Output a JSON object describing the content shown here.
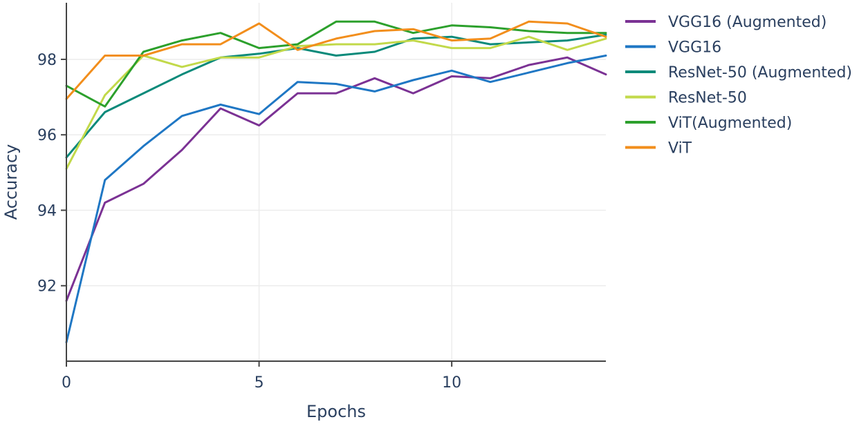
{
  "chart_data": {
    "type": "line",
    "title": "",
    "xlabel": "Epochs",
    "ylabel": "Accuracy",
    "xlim": [
      0,
      14
    ],
    "ylim": [
      90,
      99.5
    ],
    "x_ticks": [
      0,
      5,
      10
    ],
    "y_ticks": [
      92,
      94,
      96,
      98
    ],
    "x_tick_labels": [
      "0",
      "5",
      "10"
    ],
    "y_tick_labels": [
      "92",
      "94",
      "96",
      "98"
    ],
    "grid": true,
    "legend_position": "right",
    "x": [
      0,
      1,
      2,
      3,
      4,
      5,
      6,
      7,
      8,
      9,
      10,
      11,
      12,
      13,
      14
    ],
    "series": [
      {
        "name": "VGG16 (Augmented)",
        "color": "#7b3294",
        "values": [
          91.6,
          94.2,
          94.7,
          95.6,
          96.7,
          96.25,
          97.1,
          97.1,
          97.5,
          97.1,
          97.55,
          97.5,
          97.85,
          98.05,
          97.6
        ]
      },
      {
        "name": "VGG16",
        "color": "#1f77c4",
        "values": [
          90.5,
          94.8,
          95.7,
          96.5,
          96.8,
          96.55,
          97.4,
          97.35,
          97.15,
          97.45,
          97.7,
          97.4,
          97.65,
          97.9,
          98.1
        ]
      },
      {
        "name": "ResNet-50 (Augmented)",
        "color": "#0a8a7a",
        "values": [
          95.4,
          96.6,
          97.1,
          97.6,
          98.05,
          98.15,
          98.3,
          98.1,
          98.2,
          98.55,
          98.6,
          98.4,
          98.45,
          98.5,
          98.65
        ]
      },
      {
        "name": "ResNet-50",
        "color": "#c2d94a",
        "values": [
          95.1,
          97.05,
          98.1,
          97.8,
          98.05,
          98.05,
          98.35,
          98.4,
          98.4,
          98.5,
          98.3,
          98.3,
          98.6,
          98.25,
          98.55
        ]
      },
      {
        "name": "ViT(Augmented)",
        "color": "#2ca02c",
        "values": [
          97.3,
          96.75,
          98.2,
          98.5,
          98.7,
          98.3,
          98.4,
          99.0,
          99.0,
          98.7,
          98.9,
          98.85,
          98.75,
          98.7,
          98.7
        ]
      },
      {
        "name": "ViT",
        "color": "#f28e1c",
        "values": [
          96.95,
          98.1,
          98.1,
          98.4,
          98.4,
          98.95,
          98.25,
          98.55,
          98.75,
          98.8,
          98.5,
          98.55,
          99.0,
          98.95,
          98.6
        ]
      }
    ]
  }
}
